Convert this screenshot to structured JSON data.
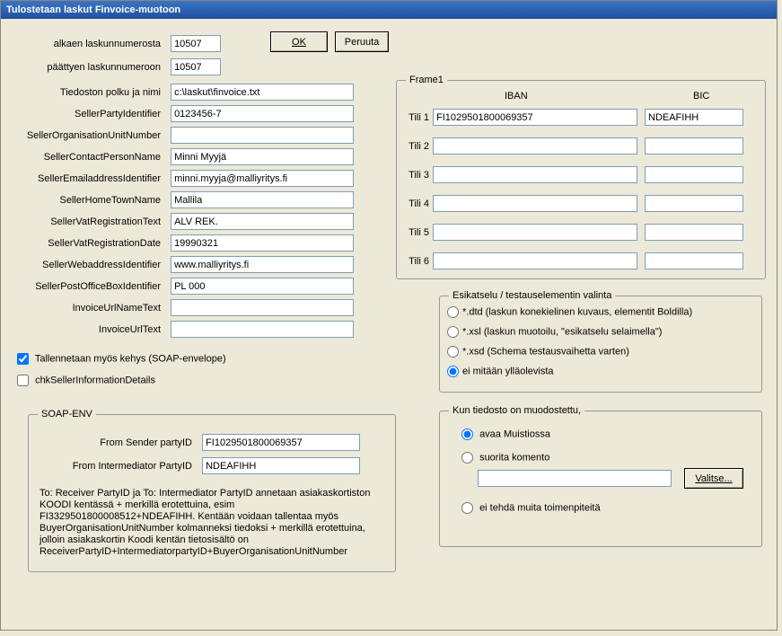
{
  "title": "Tulostetaan laskut Finvoice-muotoon",
  "buttons": {
    "ok": "OK",
    "cancel": "Peruuta",
    "browse": "Valitse..."
  },
  "left": {
    "from_num_label": "alkaen laskunnumerosta",
    "from_num": "10507",
    "to_num_label": "päättyen laskunnumeroon",
    "to_num": "10507",
    "path_label": "Tiedoston polku ja nimi",
    "path": "c:\\laskut\\finvoice.txt",
    "party_label": "SellerPartyIdentifier",
    "party": "0123456-7",
    "orgunit_label": "SellerOrganisationUnitNumber",
    "orgunit": "",
    "contact_label": "SellerContactPersonName",
    "contact": "Minni Myyjä",
    "email_label": "SellerEmailaddressIdentifier",
    "email": "minni.myyja@malliyritys.fi",
    "hometown_label": "SellerHomeTownName",
    "hometown": "Mallila",
    "vattext_label": "SellerVatRegistrationText",
    "vattext": "ALV REK.",
    "vatdate_label": "SellerVatRegistrationDate",
    "vatdate": "19990321",
    "web_label": "SellerWebaddressIdentifier",
    "web": "www.malliyritys.fi",
    "pobox_label": "SellerPostOfficeBoxIdentifier",
    "pobox": "PL 000",
    "urlname_label": "InvoiceUrlNameText",
    "urlname": "",
    "urltext_label": "InvoiceUrlText",
    "urltext": ""
  },
  "checks": {
    "soap_env_label": "Tallennetaan myös kehys (SOAP-envelope)",
    "soap_env_checked": true,
    "seller_info_label": "chkSellerInformationDetails",
    "seller_info_checked": false
  },
  "frame1": {
    "legend": "Frame1",
    "iban_hdr": "IBAN",
    "bic_hdr": "BIC",
    "rows": [
      {
        "label": "Tili 1",
        "iban": "FI1029501800069357",
        "bic": "NDEAFIHH"
      },
      {
        "label": "Tili 2",
        "iban": "",
        "bic": ""
      },
      {
        "label": "Tili 3",
        "iban": "",
        "bic": ""
      },
      {
        "label": "Tili 4",
        "iban": "",
        "bic": ""
      },
      {
        "label": "Tili 5",
        "iban": "",
        "bic": ""
      },
      {
        "label": "Tili 6",
        "iban": "",
        "bic": ""
      }
    ]
  },
  "preview": {
    "legend": "Esikatselu / testauselementin valinta",
    "opts": [
      "*.dtd (laskun konekielinen kuvaus, elementit Boldilla)",
      "*.xsl (laskun muotoilu, \"esikatselu selaimella\")",
      "*.xsd (Schema testausvaihetta varten)",
      "ei mitään ylläolevista"
    ],
    "selected": 3
  },
  "after": {
    "legend": "Kun tiedosto on muodostettu,",
    "opts": [
      "avaa Muistiossa",
      "suorita komento",
      "ei tehdä muita toimenpiteitä"
    ],
    "selected": 0,
    "command": ""
  },
  "soap": {
    "legend": "SOAP-ENV",
    "sender_label": "From Sender partyID",
    "sender": "FI1029501800069357",
    "intermed_label": "From Intermediator PartyID",
    "intermed": "NDEAFIHH",
    "help": "To: Receiver PartyID ja To: Intermediator PartyID annetaan asiakaskortiston KOODI kentässä + merkillä erotettuina, esim FI3329501800008512+NDEAFIHH. Kentään voidaan tallentaa myös BuyerOrganisationUnitNumber kolmanneksi tiedoksi + merkillä erotettuina, jolloin asiakaskortin Koodi kentän tietosisältö on ReceiverPartyID+IntermediatorpartyID+BuyerOrganisationUnitNumber"
  }
}
